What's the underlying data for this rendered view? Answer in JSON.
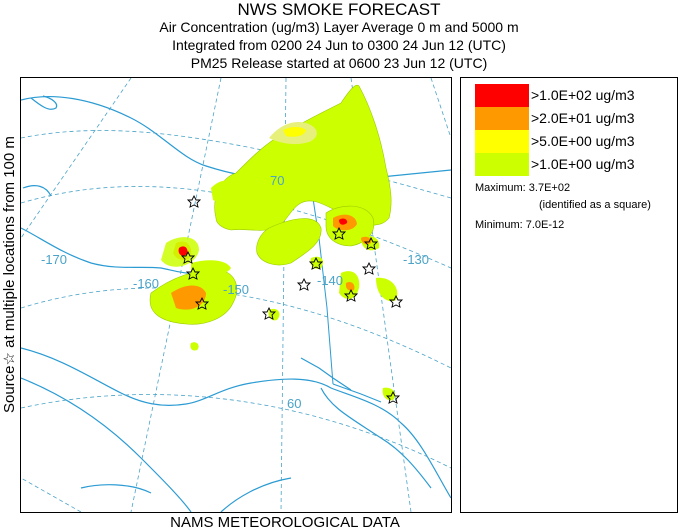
{
  "titles": {
    "line1": "NWS SMOKE FORECAST",
    "line2": "Air Concentration (ug/m3) Layer Average     0 m and  5000 m",
    "line3": "Integrated from 0200 24 Jun to 0300 24 Jun 12 (UTC)",
    "line4": "PM25 Release started at 0600 23 Jun 12 (UTC)"
  },
  "side_label": "Source☆  at multiple locations   from   100 m",
  "bottom_label": "NAMS METEOROLOGICAL DATA",
  "map": {
    "grid_labels": {
      "lon_170": "-170",
      "lon_160": "-160",
      "lon_150": "-150",
      "lon_140": "-140",
      "lon_130": "-130",
      "lat_70": "70",
      "lat_60": "60"
    },
    "colors": {
      "coast": "#2b9bd3",
      "grid": "#4aa3c8",
      "level_1": "#ccff00",
      "level_1_light": "#e6f07a",
      "level_5": "#ffff00",
      "level_20": "#ff9900",
      "level_100": "#ff0000"
    }
  },
  "legend": {
    "levels": [
      {
        "label": ">1.0E+02 ug/m3",
        "color": "#ff0000"
      },
      {
        "label": ">2.0E+01 ug/m3",
        "color": "#ff9900"
      },
      {
        "label": ">5.0E+00 ug/m3",
        "color": "#ffff00"
      },
      {
        "label": ">1.0E+00 ug/m3",
        "color": "#ccff00"
      }
    ],
    "maximum": "Maximum: 3.7E+02",
    "maximum_note": "(identified as a square)",
    "minimum": "Minimum: 7.0E-12"
  }
}
